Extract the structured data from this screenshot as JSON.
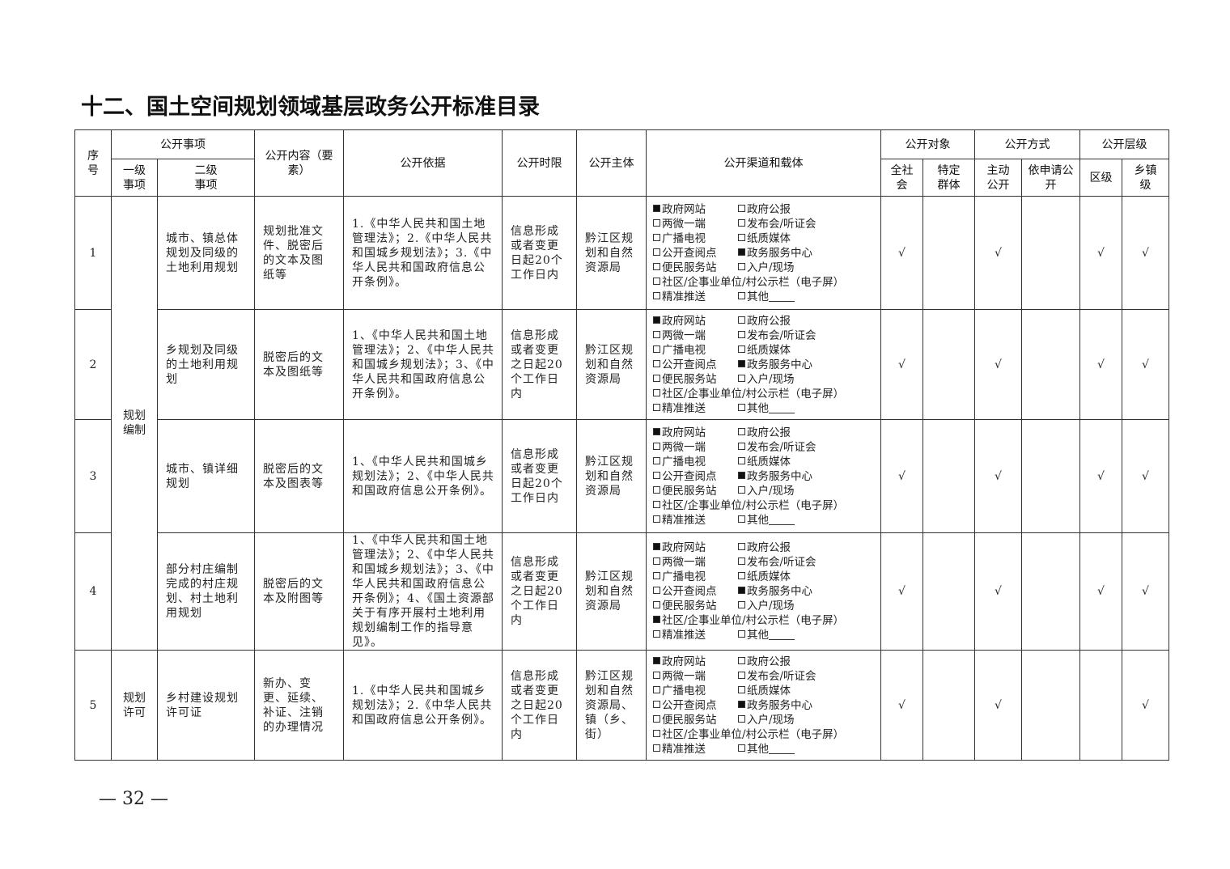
{
  "title": "十二、国土空间规划领域基层政务公开标准目录",
  "header": {
    "seq": "序号",
    "items": "公开事项",
    "level1": "一级事项",
    "level2": "二级事项",
    "content": "公开内容（要素）",
    "basis": "公开依据",
    "time_limit": "公开时限",
    "subject": "公开主体",
    "channels": "公开渠道和载体",
    "object": "公开对象",
    "object_all": "全社会",
    "object_specific": "特定群体",
    "method": "公开方式",
    "method_active": "主动公开",
    "method_request": "依申请公开",
    "tier": "公开层级",
    "tier_district": "区级",
    "tier_town": "乡镇级"
  },
  "channel_labels": [
    "政府网站",
    "政府公报",
    "两微一端",
    "发布会/听证会",
    "广播电视",
    "纸质媒体",
    "公开查阅点",
    "政务服务中心",
    "便民服务站",
    "入户/现场",
    "社区/企事业单位/村公示栏（电子屏）",
    "精准推送",
    "其他"
  ],
  "check_mark": "√",
  "groups": [
    {
      "level1": "规划编制",
      "rows": [
        0,
        1,
        2,
        3
      ]
    },
    {
      "level1": "规划许可",
      "rows": [
        4
      ]
    }
  ],
  "rows": [
    {
      "seq": "1",
      "level2": "城市、镇总体规划及同级的土地利用规划",
      "content": "规划批准文件、脱密后的文本及图纸等",
      "basis": "1.《中华人民共和国土地管理法》；2.《中华人民共和国城乡规划法》；3.《中华人民共和国政府信息公开条例》。",
      "time_limit": "信息形成或者变更日起20个工作日内",
      "subject": "黔江区规划和自然资源局",
      "channels_checked": [
        true,
        false,
        false,
        false,
        false,
        false,
        false,
        true,
        false,
        false,
        false,
        false,
        false
      ],
      "object_all": true,
      "object_specific": false,
      "method_active": true,
      "method_request": false,
      "tier_district": true,
      "tier_town": true
    },
    {
      "seq": "2",
      "level2": "乡规划及同级的土地利用规划",
      "content": "脱密后的文本及图纸等",
      "basis": "1、《中华人民共和国土地管理法》；2、《中华人民共和国城乡规划法》；3、《中华人民共和国政府信息公开条例》。",
      "time_limit": "信息形成或者变更之日起20个工作日内",
      "subject": "黔江区规划和自然资源局",
      "channels_checked": [
        true,
        false,
        false,
        false,
        false,
        false,
        false,
        true,
        false,
        false,
        false,
        false,
        false
      ],
      "object_all": true,
      "object_specific": false,
      "method_active": true,
      "method_request": false,
      "tier_district": true,
      "tier_town": true
    },
    {
      "seq": "3",
      "level2": "城市、镇详细规划",
      "content": "脱密后的文本及图表等",
      "basis": "1、《中华人民共和国城乡规划法》；2、《中华人民共和国政府信息公开条例》。",
      "time_limit": "信息形成或者变更日起20个工作日内",
      "subject": "黔江区规划和自然资源局",
      "channels_checked": [
        true,
        false,
        false,
        false,
        false,
        false,
        false,
        true,
        false,
        false,
        false,
        false,
        false
      ],
      "object_all": true,
      "object_specific": false,
      "method_active": true,
      "method_request": false,
      "tier_district": true,
      "tier_town": true
    },
    {
      "seq": "4",
      "level2": "部分村庄编制完成的村庄规划、村土地利用规划",
      "content": "脱密后的文本及附图等",
      "basis": "1、《中华人民共和国土地管理法》；2、《中华人民共和国城乡规划法》；3、《中华人民共和国政府信息公开条例》；4、《国土资源部关于有序开展村土地利用规划编制工作的指导意见》。",
      "time_limit": "信息形成或者变更之日起20个工作日内",
      "subject": "黔江区规划和自然资源局",
      "channels_checked": [
        true,
        false,
        false,
        false,
        false,
        false,
        false,
        true,
        false,
        false,
        true,
        false,
        false
      ],
      "object_all": true,
      "object_specific": false,
      "method_active": true,
      "method_request": false,
      "tier_district": true,
      "tier_town": true
    },
    {
      "seq": "5",
      "level2": "乡村建设规划许可证",
      "content": "新办、变更、延续、补证、注销的办理情况",
      "basis": "1.《中华人民共和国城乡规划法》；2.《中华人民共和国政府信息公开条例》。",
      "time_limit": "信息形成或者变更之日起20个工作日内",
      "subject": "黔江区规划和自然资源局、镇（乡、街）",
      "channels_checked": [
        true,
        false,
        false,
        false,
        false,
        false,
        false,
        true,
        false,
        false,
        false,
        false,
        false
      ],
      "object_all": true,
      "object_specific": false,
      "method_active": true,
      "method_request": false,
      "tier_district": false,
      "tier_town": true
    }
  ],
  "page_number": "— 32 —"
}
